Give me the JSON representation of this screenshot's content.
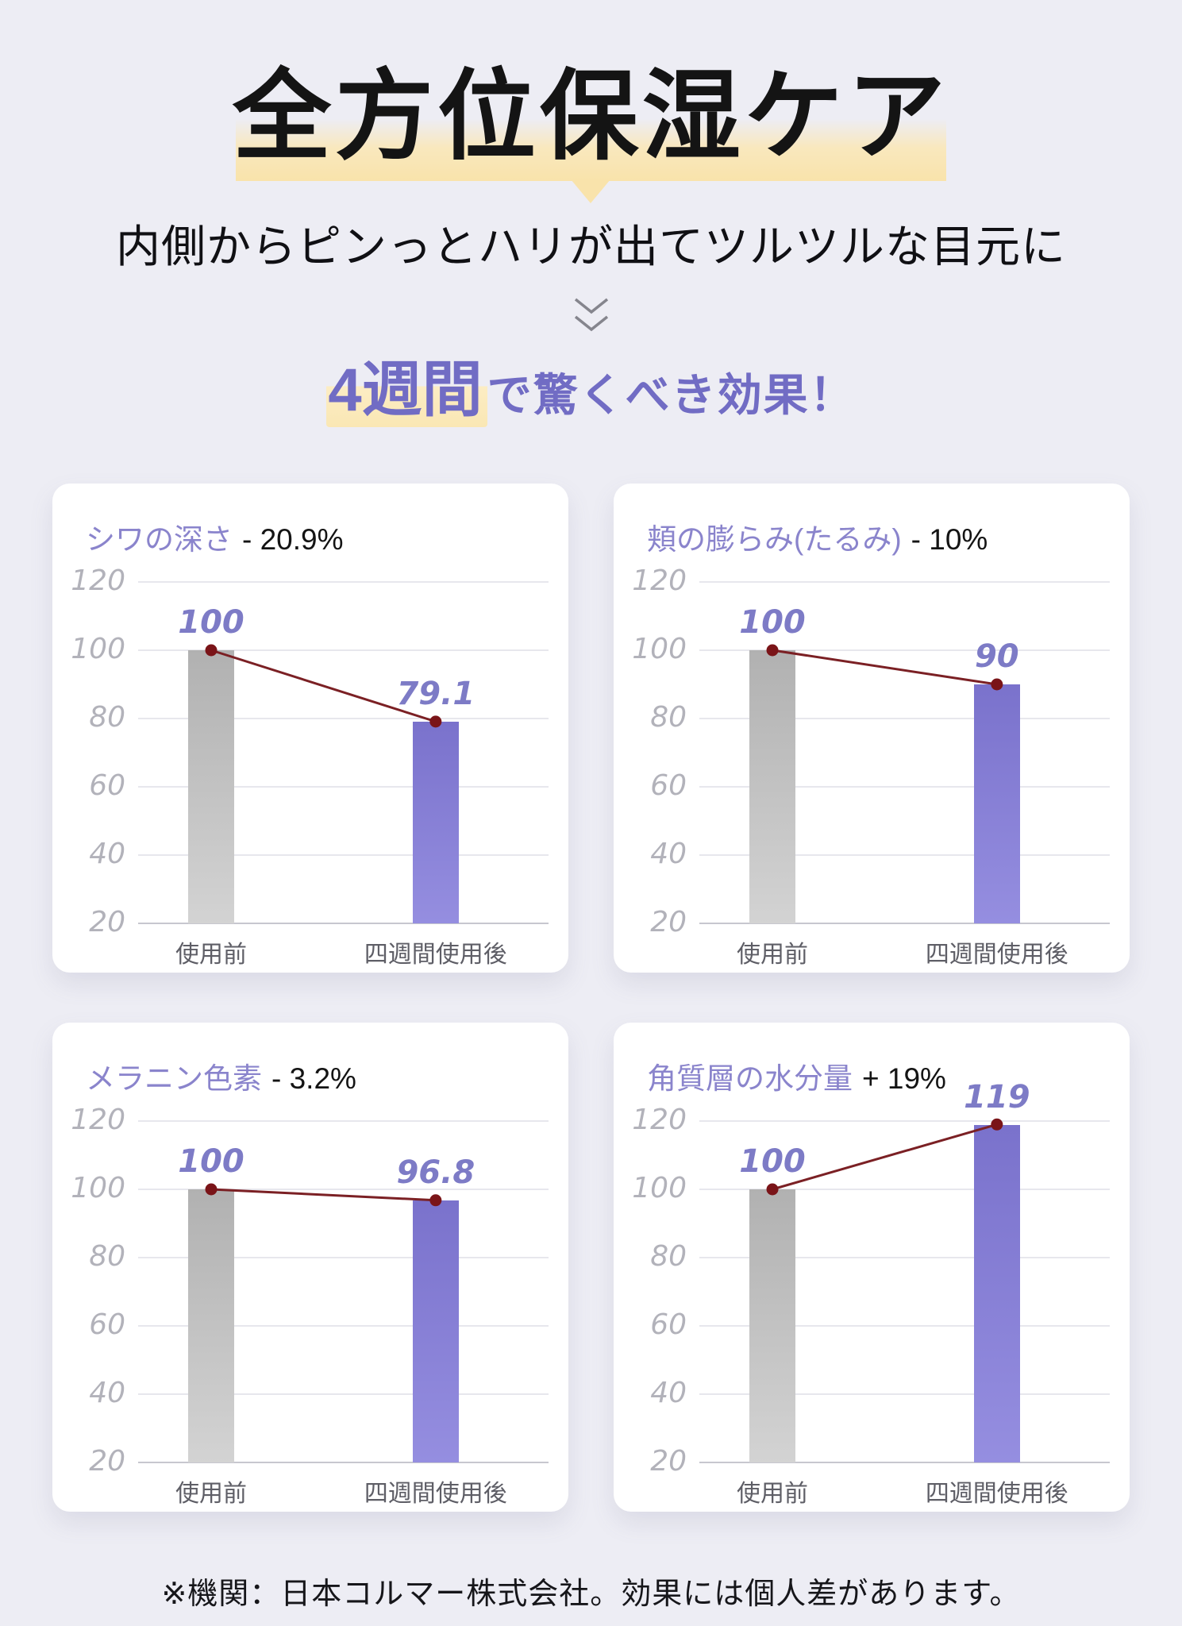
{
  "header": {
    "title": "全方位保湿ケア",
    "subtitle": "内側からピンっとハリが出てツルツルな目元に",
    "scroll_icon": "double-chevron-down",
    "effect_heading": {
      "emphasis": "4週間",
      "rest": "で驚くべき効果！"
    }
  },
  "chart_data": [
    {
      "type": "bar",
      "title": "シワの深さ",
      "delta": "- 20.9%",
      "categories": [
        "使用前",
        "四週間使用後"
      ],
      "values": [
        100,
        79.1
      ],
      "ylim": [
        20,
        120
      ],
      "yticks": [
        120,
        100,
        80,
        60,
        40,
        20
      ],
      "grid": true,
      "overlay_line": true,
      "legend_position": "none"
    },
    {
      "type": "bar",
      "title": "頬の膨らみ(たるみ)",
      "delta": "- 10%",
      "categories": [
        "使用前",
        "四週間使用後"
      ],
      "values": [
        100,
        90
      ],
      "ylim": [
        20,
        120
      ],
      "yticks": [
        120,
        100,
        80,
        60,
        40,
        20
      ],
      "grid": true,
      "overlay_line": true,
      "legend_position": "none"
    },
    {
      "type": "bar",
      "title": "メラニン色素",
      "delta": "- 3.2%",
      "categories": [
        "使用前",
        "四週間使用後"
      ],
      "values": [
        100,
        96.8
      ],
      "ylim": [
        20,
        120
      ],
      "yticks": [
        120,
        100,
        80,
        60,
        40,
        20
      ],
      "grid": true,
      "overlay_line": true,
      "legend_position": "none"
    },
    {
      "type": "bar",
      "title": "角質層の水分量",
      "delta": "+ 19%",
      "categories": [
        "使用前",
        "四週間使用後"
      ],
      "values": [
        100,
        119
      ],
      "ylim": [
        20,
        120
      ],
      "yticks": [
        120,
        100,
        80,
        60,
        40,
        20
      ],
      "grid": true,
      "overlay_line": true,
      "legend_position": "none"
    }
  ],
  "footer": {
    "note": "※機関：日本コルマー株式会社。効果には個人差があります。"
  },
  "colors": {
    "background": "#ededf4",
    "card": "#ffffff",
    "highlight_yellow": "#f9e3ab",
    "accent_purple": "#716cc4",
    "chart_title_purple": "#8a84cc",
    "value_label_purple": "#7d7bc6",
    "axis_label_gray": "#b2b2ba",
    "gridline": "#e7e7ed",
    "baseline": "#c7c7cf",
    "xlabel_gray": "#5e5e66",
    "bar_gray_top": "#b1b1b1",
    "bar_gray_bottom": "#d3d3d3",
    "bar_purple_top": "#7a72cc",
    "bar_purple_bottom": "#958ee0",
    "trend_line_maroon": "#7b2024",
    "trend_dot_maroon": "#7a1418"
  }
}
